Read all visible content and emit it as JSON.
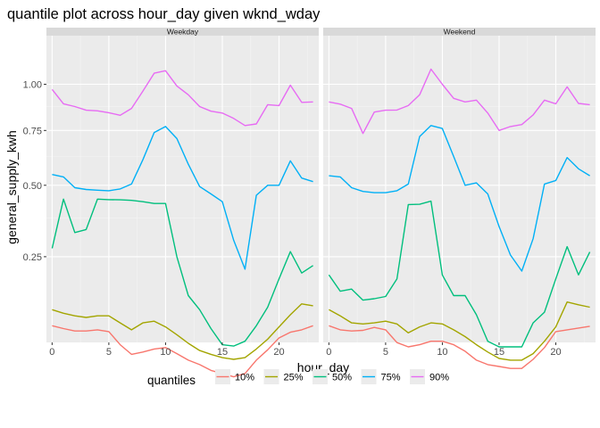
{
  "chart_data": {
    "type": "line",
    "title": "quantile plot across hour_day given wknd_wday",
    "xlabel": "hour_day",
    "ylabel": "general_supply_kwh",
    "y_scale": "sqrt",
    "xlim": [
      -0.5,
      23.5
    ],
    "x_ticks": [
      0,
      5,
      10,
      15,
      20
    ],
    "y_ticks": [
      0.25,
      0.5,
      0.75,
      1.0
    ],
    "y_tick_labels": [
      "0.25",
      "0.50",
      "0.75",
      "1.00"
    ],
    "grid": true,
    "legend_title": "quantiles",
    "legend_position": "bottom",
    "x": [
      0,
      1,
      2,
      3,
      4,
      5,
      6,
      7,
      8,
      9,
      10,
      11,
      12,
      13,
      14,
      15,
      16,
      17,
      18,
      19,
      20,
      21,
      22,
      23
    ],
    "series_colors": {
      "10%": "#F8766D",
      "25%": "#A3A500",
      "50%": "#00BF7D",
      "75%": "#00B0F6",
      "90%": "#E76BF3"
    },
    "panels": [
      {
        "label": "Weekday",
        "series": [
          {
            "name": "10%",
            "values": [
              0.09,
              0.085,
              0.081,
              0.081,
              0.083,
              0.08,
              0.06,
              0.047,
              0.05,
              0.054,
              0.056,
              0.048,
              0.04,
              0.035,
              0.029,
              0.026,
              0.023,
              0.026,
              0.04,
              0.053,
              0.07,
              0.079,
              0.083,
              0.09
            ]
          },
          {
            "name": "25%",
            "values": [
              0.12,
              0.113,
              0.108,
              0.105,
              0.108,
              0.108,
              0.095,
              0.083,
              0.095,
              0.098,
              0.088,
              0.075,
              0.062,
              0.052,
              0.047,
              0.043,
              0.041,
              0.043,
              0.054,
              0.068,
              0.088,
              0.11,
              0.132,
              0.128
            ]
          },
          {
            "name": "50%",
            "values": [
              0.275,
              0.445,
              0.325,
              0.335,
              0.445,
              0.443,
              0.442,
              0.44,
              0.435,
              0.428,
              0.428,
              0.25,
              0.15,
              0.12,
              0.085,
              0.06,
              0.058,
              0.065,
              0.09,
              0.125,
              0.19,
              0.265,
              0.205,
              0.225
            ]
          },
          {
            "name": "75%",
            "values": [
              0.545,
              0.535,
              0.49,
              0.483,
              0.48,
              0.478,
              0.485,
              0.505,
              0.61,
              0.74,
              0.77,
              0.71,
              0.59,
              0.495,
              0.465,
              0.435,
              0.3,
              0.215,
              0.46,
              0.5,
              0.5,
              0.605,
              0.53,
              0.515
            ]
          },
          {
            "name": "90%",
            "values": [
              0.97,
              0.89,
              0.875,
              0.855,
              0.852,
              0.842,
              0.828,
              0.865,
              0.96,
              1.065,
              1.08,
              0.99,
              0.94,
              0.875,
              0.85,
              0.84,
              0.812,
              0.775,
              0.783,
              0.885,
              0.88,
              0.995,
              0.898,
              0.9
            ]
          }
        ]
      },
      {
        "label": "Weekend",
        "series": [
          {
            "name": "10%",
            "values": [
              0.09,
              0.083,
              0.081,
              0.082,
              0.087,
              0.083,
              0.063,
              0.057,
              0.06,
              0.065,
              0.065,
              0.06,
              0.051,
              0.04,
              0.035,
              0.033,
              0.031,
              0.031,
              0.041,
              0.056,
              0.08,
              0.083,
              0.086,
              0.089
            ]
          },
          {
            "name": "25%",
            "values": [
              0.12,
              0.108,
              0.095,
              0.093,
              0.095,
              0.098,
              0.093,
              0.078,
              0.088,
              0.095,
              0.093,
              0.083,
              0.072,
              0.06,
              0.05,
              0.042,
              0.04,
              0.04,
              0.048,
              0.065,
              0.088,
              0.136,
              0.13,
              0.125
            ]
          },
          {
            "name": "50%",
            "values": [
              0.2,
              0.16,
              0.165,
              0.14,
              0.143,
              0.148,
              0.19,
              0.424,
              0.425,
              0.437,
              0.2,
              0.15,
              0.15,
              0.11,
              0.065,
              0.057,
              0.057,
              0.057,
              0.095,
              0.115,
              0.19,
              0.28,
              0.2,
              0.264
            ]
          },
          {
            "name": "75%",
            "values": [
              0.54,
              0.535,
              0.49,
              0.475,
              0.47,
              0.47,
              0.478,
              0.505,
              0.72,
              0.775,
              0.76,
              0.625,
              0.5,
              0.51,
              0.465,
              0.345,
              0.255,
              0.21,
              0.305,
              0.505,
              0.52,
              0.62,
              0.57,
              0.54
            ]
          },
          {
            "name": "90%",
            "values": [
              0.9,
              0.888,
              0.865,
              0.735,
              0.845,
              0.855,
              0.856,
              0.88,
              0.94,
              1.09,
              1.0,
              0.92,
              0.9,
              0.91,
              0.84,
              0.75,
              0.77,
              0.78,
              0.83,
              0.91,
              0.89,
              0.985,
              0.892,
              0.885
            ]
          }
        ]
      }
    ]
  }
}
